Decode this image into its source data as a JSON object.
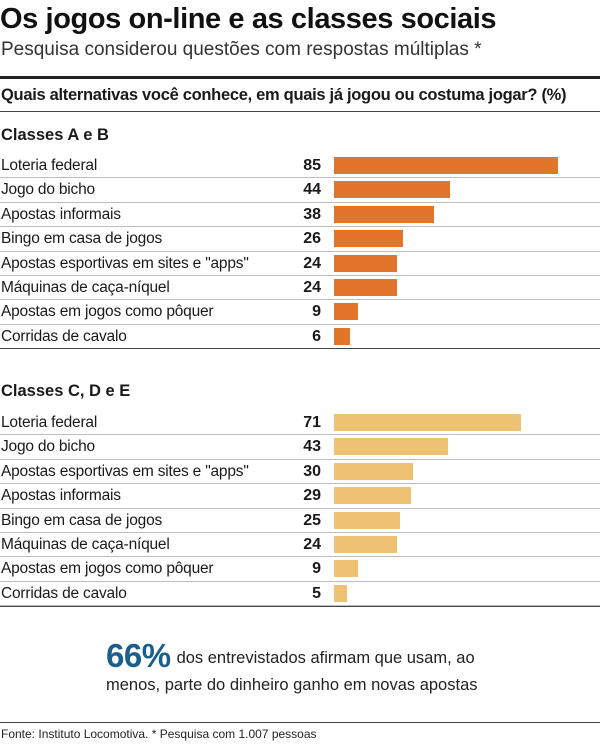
{
  "header": {
    "title": "Os jogos on-line e as classes sociais",
    "subtitle": "Pesquisa considerou questões com respostas múltiplas *",
    "question": "Quais alternativas você conhece, em quais  já jogou ou costuma jogar? (%)"
  },
  "chart_data": [
    {
      "type": "bar",
      "orientation": "horizontal",
      "title": "Classes A e B",
      "color": "#e2752a",
      "categories": [
        "Loteria federal",
        "Jogo do bicho",
        "Apostas informais",
        "Bingo em casa de jogos",
        "Apostas esportivas em sites e \"apps\"",
        "Máquinas de caça-níquel",
        "Apostas em jogos como pôquer",
        "Corridas de cavalo"
      ],
      "values": [
        85,
        44,
        38,
        26,
        24,
        24,
        9,
        6
      ],
      "xlim": [
        0,
        100
      ]
    },
    {
      "type": "bar",
      "orientation": "horizontal",
      "title": "Classes C, D e E",
      "color": "#efc273",
      "categories": [
        "Loteria federal",
        "Jogo do bicho",
        "Apostas esportivas em sites e \"apps\"",
        "Apostas informais",
        "Bingo em casa de jogos",
        "Máquinas de caça-níquel",
        "Apostas em jogos como pôquer",
        "Corridas de cavalo"
      ],
      "values": [
        71,
        43,
        30,
        29,
        25,
        24,
        9,
        5
      ],
      "xlim": [
        0,
        100
      ]
    }
  ],
  "highlight": {
    "big_number": "66%",
    "text_line1": "dos entrevistados afirmam que usam, ao",
    "text_line2": "menos, parte do dinheiro ganho em novas apostas"
  },
  "footer": {
    "source": "Fonte: Instituto Locomotiva. * Pesquisa com 1.007 pessoas"
  }
}
